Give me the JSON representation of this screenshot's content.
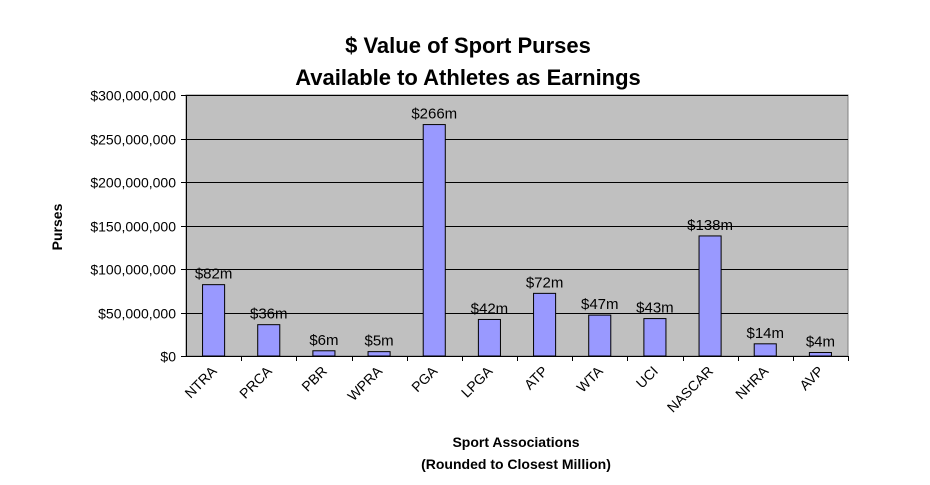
{
  "chart_data": {
    "type": "bar",
    "title_lines": [
      "$ Value of Sport Purses",
      "Available to Athletes as Earnings"
    ],
    "xlabel_lines": [
      "Sport Associations",
      "(Rounded to Closest Million)"
    ],
    "ylabel": "Purses",
    "categories": [
      "NTRA",
      "PRCA",
      "PBR",
      "WPRA",
      "PGA",
      "LPGA",
      "ATP",
      "WTA",
      "UCI",
      "NASCAR",
      "NHRA",
      "AVP"
    ],
    "values": [
      82000000,
      36000000,
      6000000,
      5000000,
      266000000,
      42000000,
      72000000,
      47000000,
      43000000,
      138000000,
      14000000,
      4000000
    ],
    "data_labels": [
      "$82m",
      "$36m",
      "$6m",
      "$5m",
      "$266m",
      "$42m",
      "$72m",
      "$47m",
      "$43m",
      "$138m",
      "$14m",
      "$4m"
    ],
    "ylim": [
      0,
      300000000
    ],
    "yticks": [
      0,
      50000000,
      100000000,
      150000000,
      200000000,
      250000000,
      300000000
    ],
    "ytick_labels": [
      "$0",
      "$50,000,000",
      "$100,000,000",
      "$150,000,000",
      "$200,000,000",
      "$250,000,000",
      "$300,000,000"
    ],
    "grid": true,
    "legend": "none",
    "colors": {
      "bar_fill": "#9999ff",
      "bar_stroke": "#000000",
      "plot_background": "#c0c0c0",
      "gridline": "#000000"
    }
  }
}
